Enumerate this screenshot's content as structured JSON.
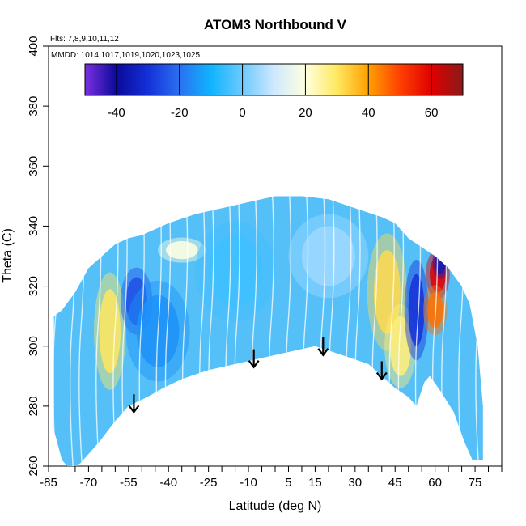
{
  "chart_data": {
    "type": "heatmap",
    "title": "ATOM3 Northbound V",
    "annotations": {
      "flights": "Flts: 7,8,9,10,11,12",
      "dates": "MMDD: 1014,1017,1019,1020,1023,1025"
    },
    "xlabel": "Latitude (deg N)",
    "ylabel": "Theta (C)",
    "xlim": [
      -85,
      85
    ],
    "ylim": [
      260,
      400
    ],
    "x_ticks": [
      -85,
      -70,
      -55,
      -40,
      -25,
      -10,
      5,
      15,
      30,
      45,
      60,
      75
    ],
    "x_tick_labels": [
      "-85",
      "-70",
      "-55",
      "-40",
      "-25",
      "-10",
      "5",
      "15",
      "30",
      "45",
      "60",
      "75"
    ],
    "y_ticks": [
      260,
      280,
      300,
      320,
      340,
      360,
      380,
      400
    ],
    "y_tick_labels": [
      "260",
      "280",
      "300",
      "320",
      "340",
      "360",
      "380",
      "400"
    ],
    "colorbar": {
      "range": [
        -50,
        70
      ],
      "ticks": [
        -40,
        -20,
        0,
        20,
        40,
        60
      ],
      "tick_labels": [
        "-40",
        "-20",
        "0",
        "20",
        "40",
        "60"
      ],
      "stops": [
        {
          "v": -50,
          "c": "#7b2fe0"
        },
        {
          "v": -40,
          "c": "#0a0a9a"
        },
        {
          "v": -30,
          "c": "#1430d8"
        },
        {
          "v": -20,
          "c": "#2a70f0"
        },
        {
          "v": -10,
          "c": "#10b4ff"
        },
        {
          "v": 0,
          "c": "#6ccaff"
        },
        {
          "v": 10,
          "c": "#cfe8ff"
        },
        {
          "v": 20,
          "c": "#ffffe0"
        },
        {
          "v": 30,
          "c": "#ffe860"
        },
        {
          "v": 40,
          "c": "#ffa000"
        },
        {
          "v": 50,
          "c": "#ff4000"
        },
        {
          "v": 60,
          "c": "#e00000"
        },
        {
          "v": 70,
          "c": "#8a1a1a"
        }
      ]
    },
    "coverage_outline": [
      [
        -83,
        310
      ],
      [
        -80,
        312
      ],
      [
        -75,
        318
      ],
      [
        -70,
        326
      ],
      [
        -65,
        330
      ],
      [
        -60,
        334
      ],
      [
        -55,
        336
      ],
      [
        -50,
        337
      ],
      [
        -45,
        339
      ],
      [
        -40,
        341
      ],
      [
        -30,
        344
      ],
      [
        -20,
        346
      ],
      [
        -10,
        348
      ],
      [
        0,
        350
      ],
      [
        10,
        350
      ],
      [
        20,
        349
      ],
      [
        30,
        346
      ],
      [
        40,
        343
      ],
      [
        45,
        341
      ],
      [
        50,
        336
      ],
      [
        55,
        333
      ],
      [
        60,
        330
      ],
      [
        65,
        326
      ],
      [
        70,
        320
      ],
      [
        73,
        314
      ],
      [
        76,
        300
      ],
      [
        78,
        280
      ],
      [
        78,
        262
      ],
      [
        74,
        262
      ],
      [
        71,
        268
      ],
      [
        67,
        278
      ],
      [
        62,
        285
      ],
      [
        58,
        290
      ],
      [
        56,
        288
      ],
      [
        53,
        280
      ],
      [
        50,
        283
      ],
      [
        45,
        286
      ],
      [
        40,
        290
      ],
      [
        35,
        294
      ],
      [
        25,
        297
      ],
      [
        15,
        300
      ],
      [
        5,
        298
      ],
      [
        -5,
        296
      ],
      [
        -15,
        294
      ],
      [
        -25,
        292
      ],
      [
        -35,
        289
      ],
      [
        -42,
        286
      ],
      [
        -48,
        283
      ],
      [
        -55,
        280
      ],
      [
        -60,
        275
      ],
      [
        -66,
        268
      ],
      [
        -72,
        262
      ],
      [
        -76,
        258
      ],
      [
        -80,
        262
      ],
      [
        -83,
        272
      ]
    ],
    "features": [
      {
        "lon": -62,
        "theta": 305,
        "value": 30,
        "rx": 4,
        "ry": 14
      },
      {
        "lon": -52,
        "theta": 315,
        "value": -25,
        "rx": 4,
        "ry": 8
      },
      {
        "lon": -44,
        "theta": 305,
        "value": -15,
        "rx": 8,
        "ry": 12
      },
      {
        "lon": -35,
        "theta": 332,
        "value": 20,
        "rx": 6,
        "ry": 3
      },
      {
        "lon": -15,
        "theta": 325,
        "value": -5,
        "rx": 10,
        "ry": 12
      },
      {
        "lon": 20,
        "theta": 330,
        "value": 5,
        "rx": 10,
        "ry": 10
      },
      {
        "lon": 42,
        "theta": 318,
        "value": 32,
        "rx": 5,
        "ry": 14
      },
      {
        "lon": 47,
        "theta": 300,
        "value": 28,
        "rx": 4,
        "ry": 10
      },
      {
        "lon": 53,
        "theta": 312,
        "value": -30,
        "rx": 3,
        "ry": 12
      },
      {
        "lon": 61,
        "theta": 324,
        "value": 60,
        "rx": 3,
        "ry": 6
      },
      {
        "lon": 60,
        "theta": 312,
        "value": 45,
        "rx": 3,
        "ry": 6
      },
      {
        "lon": 62,
        "theta": 328,
        "value": -35,
        "rx": 2,
        "ry": 4
      }
    ],
    "arrows": [
      {
        "lon": -53,
        "theta": 278
      },
      {
        "lon": -8,
        "theta": 293
      },
      {
        "lon": 18,
        "theta": 297
      },
      {
        "lon": 40,
        "theta": 289
      }
    ]
  }
}
